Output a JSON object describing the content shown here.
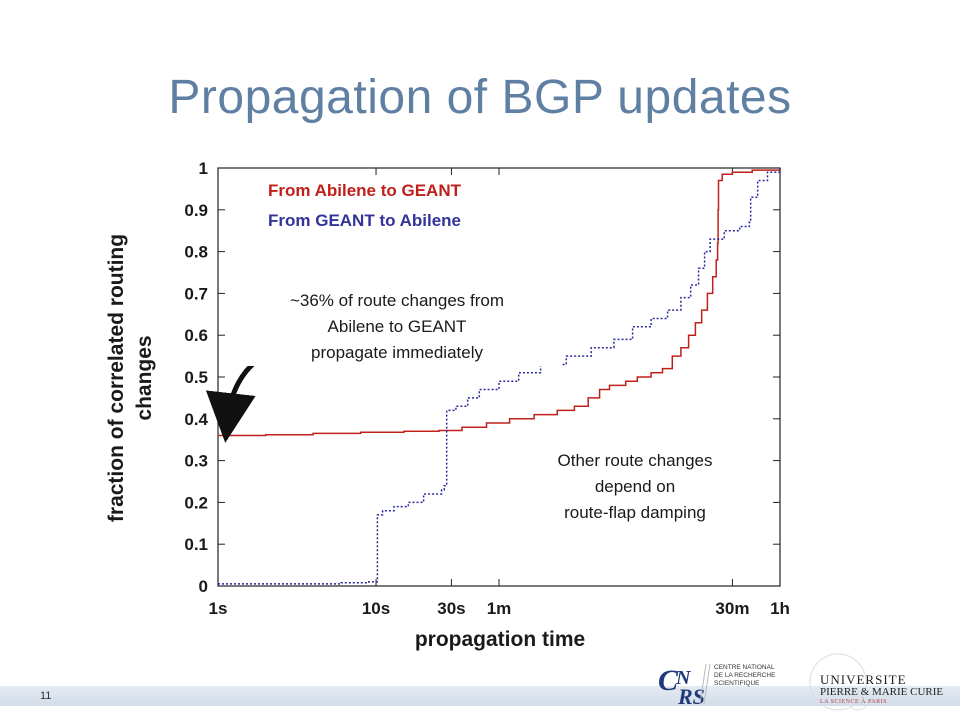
{
  "slide": {
    "title": "Propagation of BGP updates",
    "number": "11"
  },
  "colors": {
    "title": "#5f7fa3",
    "red_series": "#c0201b",
    "blue_series": "#2a2a9c"
  },
  "annotations": {
    "immediate_lines": [
      "~36% of route changes from",
      "Abilene to GEANT",
      "propagate immediately"
    ],
    "damping_lines": [
      "Other route changes",
      "depend on",
      "route-flap damping"
    ]
  },
  "logos": {
    "cnrs_lines": [
      "CENTRE NATIONAL",
      "DE LA RECHERCHE",
      "SCIENTIFIQUE"
    ],
    "upmc_title": "UNIVERSITE",
    "upmc_subtitle": "PIERRE & MARIE CURIE",
    "upmc_tagline": "LA SCIENCE À PARIS"
  },
  "chart_data": {
    "type": "line",
    "title": "",
    "xlabel": "propagation time",
    "ylabel": "fraction of correlated routing changes",
    "x_scale": "log",
    "x_unit": "seconds",
    "xlim": [
      1,
      3600
    ],
    "ylim": [
      0,
      1
    ],
    "x_ticks": [
      {
        "value": 1,
        "label": "1s"
      },
      {
        "value": 10,
        "label": "10s"
      },
      {
        "value": 30,
        "label": "30s"
      },
      {
        "value": 60,
        "label": "1m"
      },
      {
        "value": 1800,
        "label": "30m"
      },
      {
        "value": 3600,
        "label": "1h"
      }
    ],
    "y_ticks": [
      {
        "value": 0,
        "label": "0"
      },
      {
        "value": 0.1,
        "label": "0.1"
      },
      {
        "value": 0.2,
        "label": "0.2"
      },
      {
        "value": 0.3,
        "label": "0.3"
      },
      {
        "value": 0.4,
        "label": "0.4"
      },
      {
        "value": 0.5,
        "label": "0.5"
      },
      {
        "value": 0.6,
        "label": "0.6"
      },
      {
        "value": 0.7,
        "label": "0.7"
      },
      {
        "value": 0.8,
        "label": "0.8"
      },
      {
        "value": 0.9,
        "label": "0.9"
      },
      {
        "value": 1,
        "label": "1"
      }
    ],
    "grid": false,
    "legend_position": "top-left",
    "series": [
      {
        "name": "From Abilene to GEANT",
        "color": "#c0201b",
        "style": "solid",
        "points": [
          [
            1,
            0.36
          ],
          [
            2,
            0.362
          ],
          [
            4,
            0.365
          ],
          [
            8,
            0.368
          ],
          [
            15,
            0.37
          ],
          [
            25,
            0.372
          ],
          [
            35,
            0.38
          ],
          [
            50,
            0.39
          ],
          [
            70,
            0.4
          ],
          [
            100,
            0.41
          ],
          [
            140,
            0.42
          ],
          [
            180,
            0.43
          ],
          [
            220,
            0.45
          ],
          [
            260,
            0.47
          ],
          [
            300,
            0.48
          ],
          [
            380,
            0.49
          ],
          [
            450,
            0.5
          ],
          [
            550,
            0.51
          ],
          [
            650,
            0.52
          ],
          [
            750,
            0.55
          ],
          [
            850,
            0.57
          ],
          [
            950,
            0.6
          ],
          [
            1050,
            0.63
          ],
          [
            1150,
            0.66
          ],
          [
            1250,
            0.7
          ],
          [
            1350,
            0.74
          ],
          [
            1420,
            0.78
          ],
          [
            1450,
            0.82
          ],
          [
            1460,
            0.9
          ],
          [
            1470,
            0.97
          ],
          [
            1550,
            0.985
          ],
          [
            1800,
            0.99
          ],
          [
            2400,
            0.995
          ],
          [
            3600,
            1.0
          ]
        ]
      },
      {
        "name": "From GEANT to Abilene",
        "color": "#2a2a9c",
        "style": "dotted",
        "points": [
          [
            1,
            0.005
          ],
          [
            3,
            0.005
          ],
          [
            6,
            0.008
          ],
          [
            9,
            0.01
          ],
          [
            10,
            0.01
          ],
          [
            10.2,
            0.17
          ],
          [
            11,
            0.18
          ],
          [
            13,
            0.19
          ],
          [
            16,
            0.2
          ],
          [
            20,
            0.22
          ],
          [
            26,
            0.23
          ],
          [
            27,
            0.24
          ],
          [
            28,
            0.42
          ],
          [
            32,
            0.43
          ],
          [
            38,
            0.45
          ],
          [
            45,
            0.47
          ],
          [
            60,
            0.49
          ],
          [
            80,
            0.51
          ],
          [
            110,
            0.53
          ],
          [
            160,
            0.55
          ],
          [
            230,
            0.57
          ],
          [
            320,
            0.59
          ],
          [
            420,
            0.62
          ],
          [
            550,
            0.64
          ],
          [
            700,
            0.66
          ],
          [
            850,
            0.69
          ],
          [
            980,
            0.72
          ],
          [
            1100,
            0.76
          ],
          [
            1200,
            0.8
          ],
          [
            1300,
            0.83
          ],
          [
            1600,
            0.85
          ],
          [
            2000,
            0.86
          ],
          [
            2300,
            0.87
          ],
          [
            2350,
            0.93
          ],
          [
            2600,
            0.97
          ],
          [
            3000,
            0.99
          ],
          [
            3600,
            1.0
          ]
        ]
      }
    ]
  }
}
